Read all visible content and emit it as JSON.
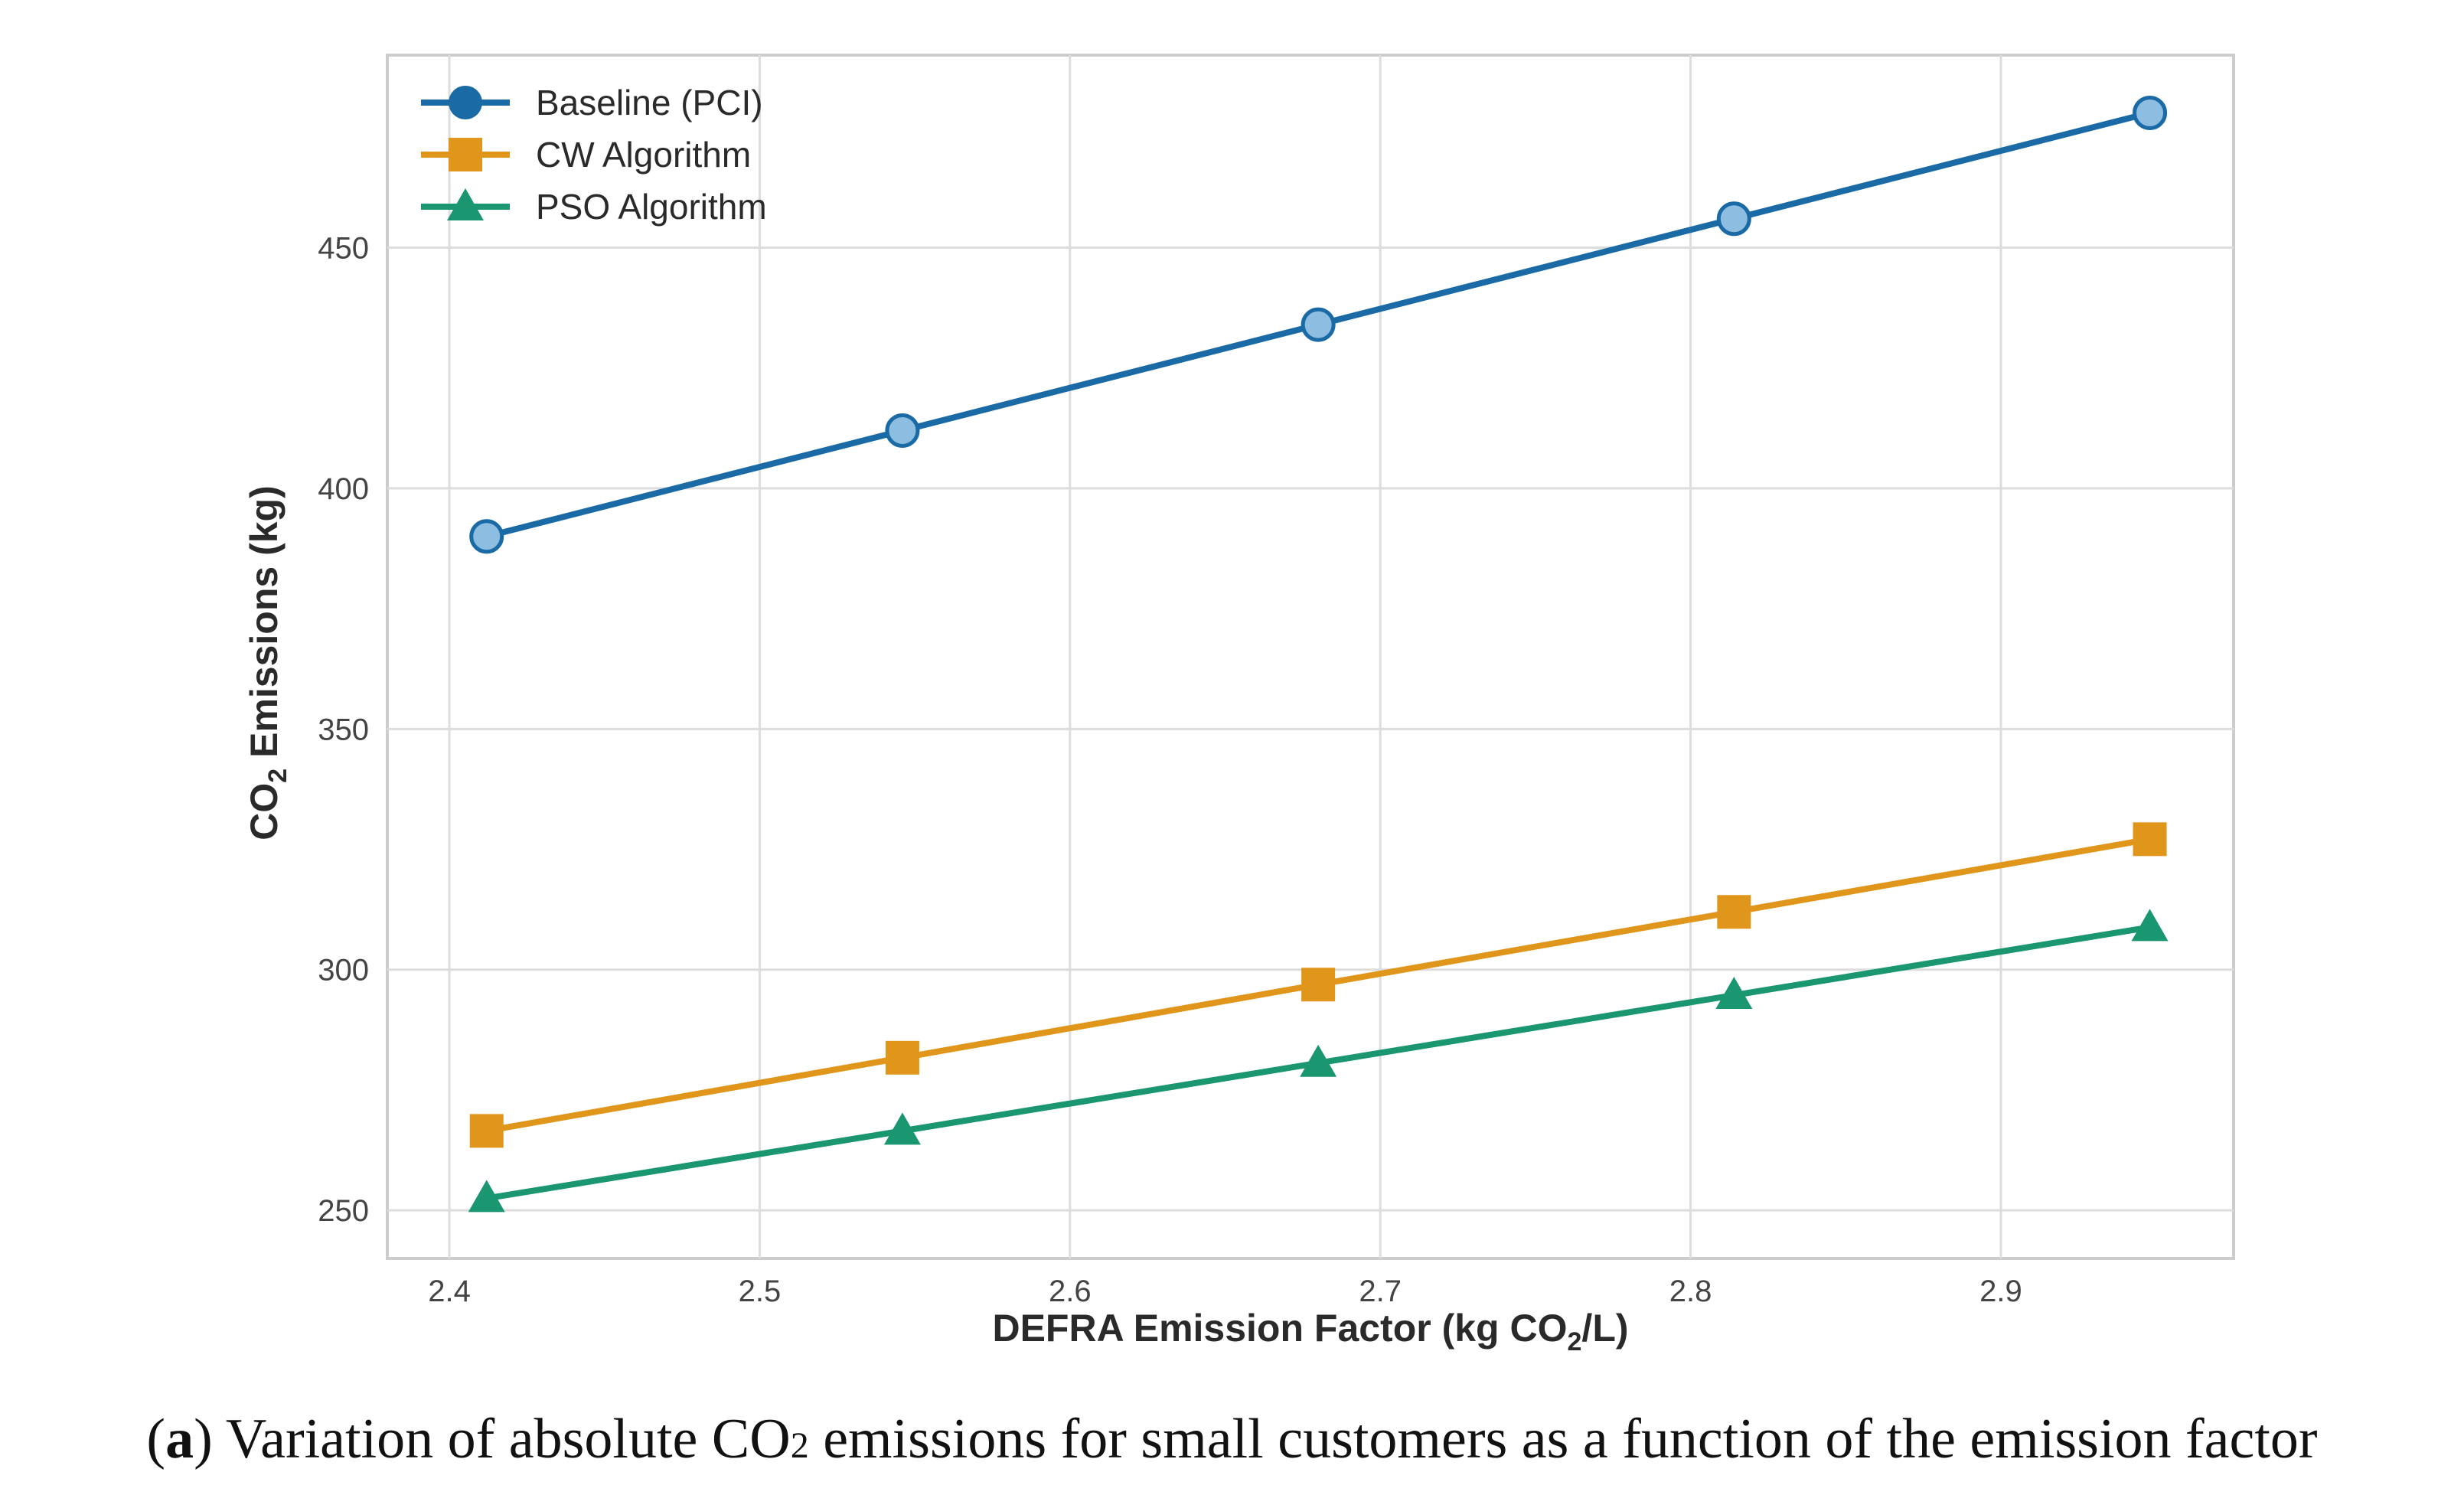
{
  "chart_data": {
    "type": "line",
    "title": "",
    "xlabel": {
      "pre": "DEFRA Emission Factor (kg CO",
      "sub": "2",
      "post": "/L)"
    },
    "ylabel": {
      "pre": "CO",
      "sub": "2",
      "post": " Emissions (kg)"
    },
    "xlim": [
      2.38,
      2.975
    ],
    "ylim": [
      240,
      490
    ],
    "x_ticks": [
      2.4,
      2.5,
      2.6,
      2.7,
      2.8,
      2.9
    ],
    "x_tick_labels": [
      "2.4",
      "2.5",
      "2.6",
      "2.7",
      "2.8",
      "2.9"
    ],
    "y_ticks": [
      250,
      300,
      350,
      400,
      450
    ],
    "y_tick_labels": [
      "250",
      "300",
      "350",
      "400",
      "450"
    ],
    "grid": true,
    "legend_position": "top-left",
    "x": [
      2.412,
      2.546,
      2.68,
      2.814,
      2.948
    ],
    "series": [
      {
        "name": "Baseline (PCI)",
        "marker": "circle",
        "color": "#1a6aa6",
        "fill": "#8dbde0",
        "values": [
          390,
          412,
          434,
          456,
          478
        ]
      },
      {
        "name": "CW Algorithm",
        "marker": "square",
        "color": "#e0961a",
        "fill": "#e0961a",
        "values": [
          266.5,
          281.7,
          296.9,
          312.0,
          327.1
        ]
      },
      {
        "name": "PSO Algorithm",
        "marker": "triangle",
        "color": "#1a9670",
        "fill": "#1a9670",
        "values": [
          252.5,
          266.5,
          280.6,
          294.7,
          308.8
        ]
      }
    ]
  },
  "caption": {
    "label": "a",
    "open": "(",
    "close": ")",
    "text_pre": " Variation of absolute CO",
    "sub": "2",
    "text_post": " emissions for small customers as a function of the emission factor"
  }
}
